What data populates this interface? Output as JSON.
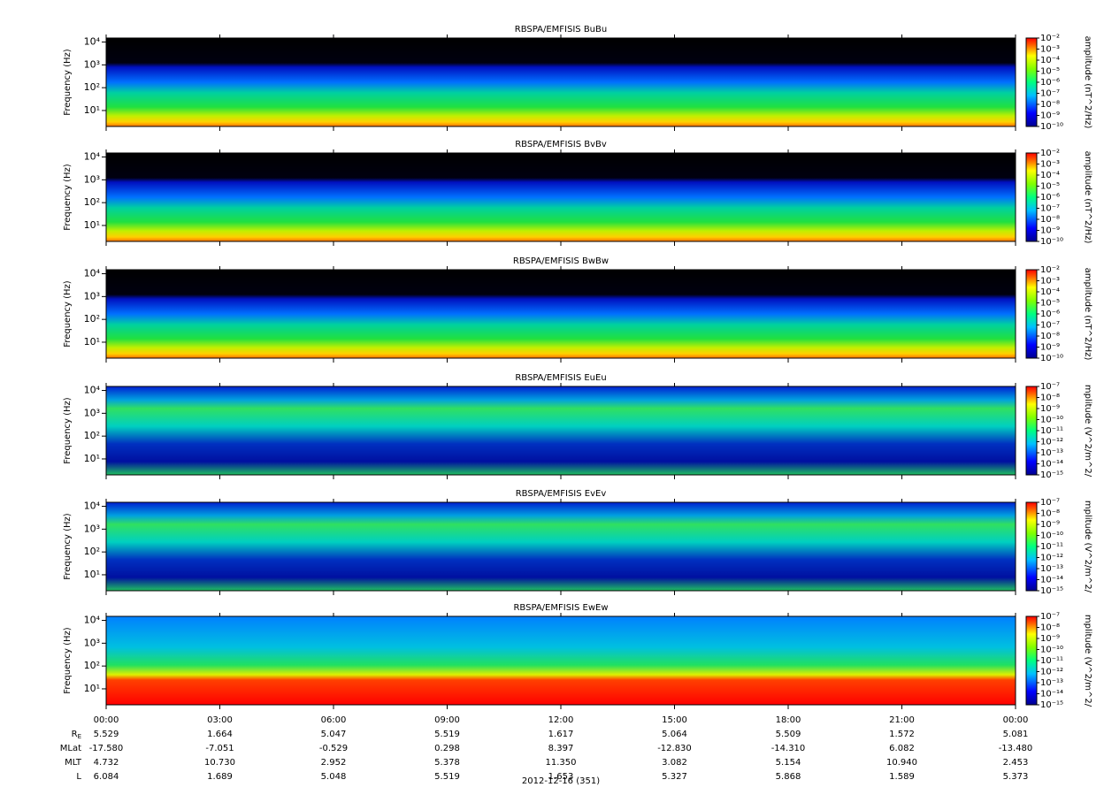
{
  "chart_data": [
    {
      "type": "spectrogram",
      "title": "RBSPA/EMFISIS  BuBu",
      "y_label": "Frequency (Hz)",
      "log_y": true,
      "ylim": [
        2,
        15000
      ],
      "yticks": [
        {
          "value": 10,
          "label": "10¹"
        },
        {
          "value": 100,
          "label": "10²"
        },
        {
          "value": 1000,
          "label": "10³"
        },
        {
          "value": 10000,
          "label": "10⁴"
        }
      ],
      "colorbar_label": "amplitude (nT^2/Hz)",
      "clim": [
        1e-10,
        0.01
      ],
      "cticks": [
        {
          "value": 1e-10,
          "label": "10⁻¹⁰"
        },
        {
          "value": 1e-09,
          "label": "10⁻⁹"
        },
        {
          "value": 1e-08,
          "label": "10⁻⁸"
        },
        {
          "value": 1e-07,
          "label": "10⁻⁷"
        },
        {
          "value": 1e-06,
          "label": "10⁻⁶"
        },
        {
          "value": 1e-05,
          "label": "10⁻⁵"
        },
        {
          "value": 0.0001,
          "label": "10⁻⁴"
        },
        {
          "value": 0.001,
          "label": "10⁻³"
        },
        {
          "value": 0.01,
          "label": "10⁻²"
        }
      ]
    },
    {
      "type": "spectrogram",
      "title": "RBSPA/EMFISIS  BvBv",
      "y_label": "Frequency (Hz)",
      "log_y": true,
      "ylim": [
        2,
        15000
      ],
      "yticks": [
        {
          "value": 10,
          "label": "10¹"
        },
        {
          "value": 100,
          "label": "10²"
        },
        {
          "value": 1000,
          "label": "10³"
        },
        {
          "value": 10000,
          "label": "10⁴"
        }
      ],
      "colorbar_label": "amplitude (nT^2/Hz)",
      "clim": [
        1e-10,
        0.01
      ],
      "cticks": [
        {
          "value": 1e-10,
          "label": "10⁻¹⁰"
        },
        {
          "value": 1e-09,
          "label": "10⁻⁹"
        },
        {
          "value": 1e-08,
          "label": "10⁻⁸"
        },
        {
          "value": 1e-07,
          "label": "10⁻⁷"
        },
        {
          "value": 1e-06,
          "label": "10⁻⁶"
        },
        {
          "value": 1e-05,
          "label": "10⁻⁵"
        },
        {
          "value": 0.0001,
          "label": "10⁻⁴"
        },
        {
          "value": 0.001,
          "label": "10⁻³"
        },
        {
          "value": 0.01,
          "label": "10⁻²"
        }
      ]
    },
    {
      "type": "spectrogram",
      "title": "RBSPA/EMFISIS  BwBw",
      "y_label": "Frequency (Hz)",
      "log_y": true,
      "ylim": [
        2,
        15000
      ],
      "yticks": [
        {
          "value": 10,
          "label": "10¹"
        },
        {
          "value": 100,
          "label": "10²"
        },
        {
          "value": 1000,
          "label": "10³"
        },
        {
          "value": 10000,
          "label": "10⁴"
        }
      ],
      "colorbar_label": "amplitude (nT^2/Hz)",
      "clim": [
        1e-10,
        0.01
      ],
      "cticks": [
        {
          "value": 1e-10,
          "label": "10⁻¹⁰"
        },
        {
          "value": 1e-09,
          "label": "10⁻⁹"
        },
        {
          "value": 1e-08,
          "label": "10⁻⁸"
        },
        {
          "value": 1e-07,
          "label": "10⁻⁷"
        },
        {
          "value": 1e-06,
          "label": "10⁻⁶"
        },
        {
          "value": 1e-05,
          "label": "10⁻⁵"
        },
        {
          "value": 0.0001,
          "label": "10⁻⁴"
        },
        {
          "value": 0.001,
          "label": "10⁻³"
        },
        {
          "value": 0.01,
          "label": "10⁻²"
        }
      ]
    },
    {
      "type": "spectrogram",
      "title": "RBSPA/EMFISIS  EuEu",
      "y_label": "Frequency (Hz)",
      "log_y": true,
      "ylim": [
        2,
        15000
      ],
      "yticks": [
        {
          "value": 10,
          "label": "10¹"
        },
        {
          "value": 100,
          "label": "10²"
        },
        {
          "value": 1000,
          "label": "10³"
        },
        {
          "value": 10000,
          "label": "10⁴"
        }
      ],
      "colorbar_label": "mplitude (V^2/m^2/",
      "clim": [
        1e-15,
        1e-07
      ],
      "cticks": [
        {
          "value": 1e-15,
          "label": "10⁻¹⁵"
        },
        {
          "value": 1e-14,
          "label": "10⁻¹⁴"
        },
        {
          "value": 1e-13,
          "label": "10⁻¹³"
        },
        {
          "value": 1e-12,
          "label": "10⁻¹²"
        },
        {
          "value": 1e-11,
          "label": "10⁻¹¹"
        },
        {
          "value": 1e-10,
          "label": "10⁻¹⁰"
        },
        {
          "value": 1e-09,
          "label": "10⁻⁹"
        },
        {
          "value": 1e-08,
          "label": "10⁻⁸"
        },
        {
          "value": 1e-07,
          "label": "10⁻⁷"
        }
      ]
    },
    {
      "type": "spectrogram",
      "title": "RBSPA/EMFISIS  EvEv",
      "y_label": "Frequency (Hz)",
      "log_y": true,
      "ylim": [
        2,
        15000
      ],
      "yticks": [
        {
          "value": 10,
          "label": "10¹"
        },
        {
          "value": 100,
          "label": "10²"
        },
        {
          "value": 1000,
          "label": "10³"
        },
        {
          "value": 10000,
          "label": "10⁴"
        }
      ],
      "colorbar_label": "mplitude (V^2/m^2/",
      "clim": [
        1e-15,
        1e-07
      ],
      "cticks": [
        {
          "value": 1e-15,
          "label": "10⁻¹⁵"
        },
        {
          "value": 1e-14,
          "label": "10⁻¹⁴"
        },
        {
          "value": 1e-13,
          "label": "10⁻¹³"
        },
        {
          "value": 1e-12,
          "label": "10⁻¹²"
        },
        {
          "value": 1e-11,
          "label": "10⁻¹¹"
        },
        {
          "value": 1e-10,
          "label": "10⁻¹⁰"
        },
        {
          "value": 1e-09,
          "label": "10⁻⁹"
        },
        {
          "value": 1e-08,
          "label": "10⁻⁸"
        },
        {
          "value": 1e-07,
          "label": "10⁻⁷"
        }
      ]
    },
    {
      "type": "spectrogram",
      "title": "RBSPA/EMFISIS  EwEw",
      "y_label": "Frequency (Hz)",
      "log_y": true,
      "ylim": [
        2,
        15000
      ],
      "yticks": [
        {
          "value": 10,
          "label": "10¹"
        },
        {
          "value": 100,
          "label": "10²"
        },
        {
          "value": 1000,
          "label": "10³"
        },
        {
          "value": 10000,
          "label": "10⁴"
        }
      ],
      "colorbar_label": "mplitude (V^2/m^2/",
      "clim": [
        1e-15,
        1e-07
      ],
      "cticks": [
        {
          "value": 1e-15,
          "label": "10⁻¹⁵"
        },
        {
          "value": 1e-14,
          "label": "10⁻¹⁴"
        },
        {
          "value": 1e-13,
          "label": "10⁻¹³"
        },
        {
          "value": 1e-12,
          "label": "10⁻¹²"
        },
        {
          "value": 1e-11,
          "label": "10⁻¹¹"
        },
        {
          "value": 1e-10,
          "label": "10⁻¹⁰"
        },
        {
          "value": 1e-09,
          "label": "10⁻⁹"
        },
        {
          "value": 1e-08,
          "label": "10⁻⁸"
        },
        {
          "value": 1e-07,
          "label": "10⁻⁷"
        }
      ]
    }
  ],
  "time_axis": {
    "xlim": [
      0,
      24
    ],
    "xticks": [
      {
        "value": 0,
        "label": "00:00"
      },
      {
        "value": 3,
        "label": "03:00"
      },
      {
        "value": 6,
        "label": "06:00"
      },
      {
        "value": 9,
        "label": "09:00"
      },
      {
        "value": 12,
        "label": "12:00"
      },
      {
        "value": 15,
        "label": "15:00"
      },
      {
        "value": 18,
        "label": "18:00"
      },
      {
        "value": 21,
        "label": "21:00"
      },
      {
        "value": 24,
        "label": "00:00"
      }
    ],
    "date": "2012-12-16 (351)"
  },
  "ephemeris": {
    "rows": [
      {
        "label": {
          "base": "R",
          "sub": "E"
        },
        "values": [
          "5.529",
          "1.664",
          "5.047",
          "5.519",
          "1.617",
          "5.064",
          "5.509",
          "1.572",
          "5.081"
        ]
      },
      {
        "label": {
          "base": "MLat"
        },
        "values": [
          "-17.580",
          "-7.051",
          "-0.529",
          "0.298",
          "8.397",
          "-12.830",
          "-14.310",
          "6.082",
          "-13.480"
        ]
      },
      {
        "label": {
          "base": "MLT"
        },
        "values": [
          "4.732",
          "10.730",
          "2.952",
          "5.378",
          "11.350",
          "3.082",
          "5.154",
          "10.940",
          "2.453"
        ]
      },
      {
        "label": {
          "base": "L"
        },
        "values": [
          "6.084",
          "1.689",
          "5.048",
          "5.519",
          "1.653",
          "5.327",
          "5.868",
          "1.589",
          "5.373"
        ]
      }
    ]
  }
}
